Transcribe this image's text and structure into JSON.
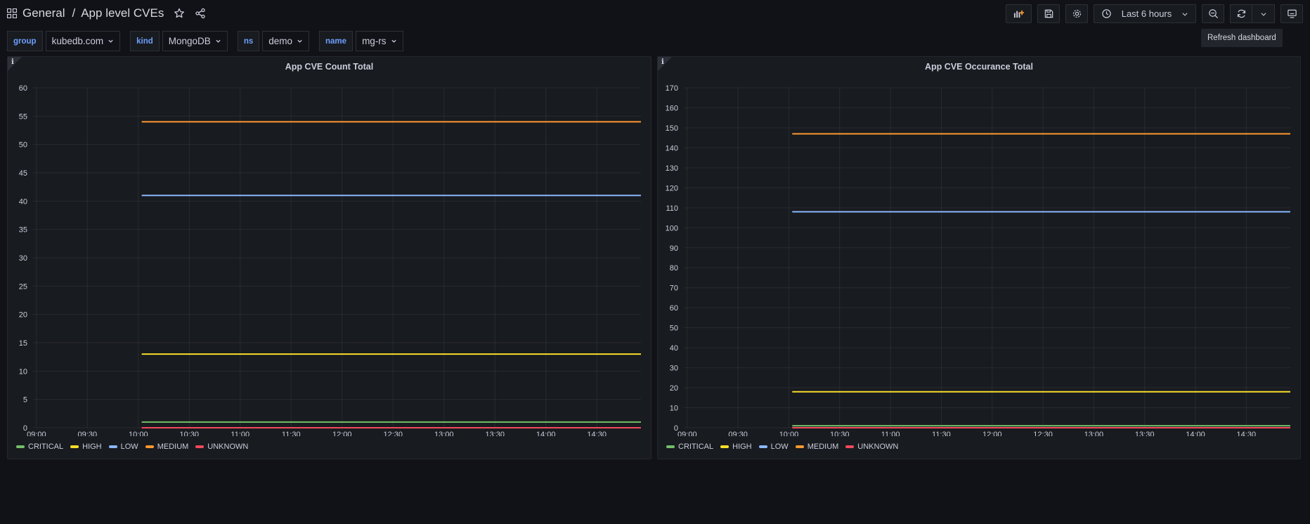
{
  "header": {
    "breadcrumb_folder": "General",
    "breadcrumb_sep": "/",
    "dashboard_title": "App level CVEs",
    "time_range_label": "Last 6 hours",
    "refresh_tooltip": "Refresh dashboard"
  },
  "variables": [
    {
      "label": "group",
      "value": "kubedb.com"
    },
    {
      "label": "kind",
      "value": "MongoDB"
    },
    {
      "label": "ns",
      "value": "demo"
    },
    {
      "label": "name",
      "value": "mg-rs"
    }
  ],
  "colors": {
    "CRITICAL": "#73bf69",
    "HIGH": "#fade2a",
    "LOW": "#8ab8ff",
    "MEDIUM": "#ff9830",
    "UNKNOWN": "#f2495c"
  },
  "chart_data": [
    {
      "type": "line",
      "title": "App CVE Count Total",
      "info_icon_label": "i",
      "x_ticks": [
        "09:00",
        "09:30",
        "10:00",
        "10:30",
        "11:00",
        "11:30",
        "12:00",
        "12:30",
        "13:00",
        "13:30",
        "14:00",
        "14:30"
      ],
      "x_range_minutes": [
        -2,
        356
      ],
      "y_ticks": [
        0,
        5,
        10,
        15,
        20,
        25,
        30,
        35,
        40,
        45,
        50,
        55,
        60
      ],
      "ylim": [
        0,
        60
      ],
      "series_start_minutes": 62,
      "series_end_minutes": 356,
      "series": [
        {
          "name": "CRITICAL",
          "value": 1
        },
        {
          "name": "HIGH",
          "value": 13
        },
        {
          "name": "LOW",
          "value": 41
        },
        {
          "name": "MEDIUM",
          "value": 54
        },
        {
          "name": "UNKNOWN",
          "value": 0
        }
      ],
      "legend": [
        "CRITICAL",
        "HIGH",
        "LOW",
        "MEDIUM",
        "UNKNOWN"
      ]
    },
    {
      "type": "line",
      "title": "App CVE Occurance Total",
      "info_icon_label": "i",
      "x_ticks": [
        "09:00",
        "09:30",
        "10:00",
        "10:30",
        "11:00",
        "11:30",
        "12:00",
        "12:30",
        "13:00",
        "13:30",
        "14:00",
        "14:30"
      ],
      "x_range_minutes": [
        -2,
        356
      ],
      "y_ticks": [
        0,
        10,
        20,
        30,
        40,
        50,
        60,
        70,
        80,
        90,
        100,
        110,
        120,
        130,
        140,
        150,
        160,
        170
      ],
      "ylim": [
        0,
        170
      ],
      "series_start_minutes": 62,
      "series_end_minutes": 356,
      "series": [
        {
          "name": "CRITICAL",
          "value": 1
        },
        {
          "name": "HIGH",
          "value": 18
        },
        {
          "name": "LOW",
          "value": 108
        },
        {
          "name": "MEDIUM",
          "value": 147
        },
        {
          "name": "UNKNOWN",
          "value": 0
        }
      ],
      "legend": [
        "CRITICAL",
        "HIGH",
        "LOW",
        "MEDIUM",
        "UNKNOWN"
      ]
    }
  ]
}
